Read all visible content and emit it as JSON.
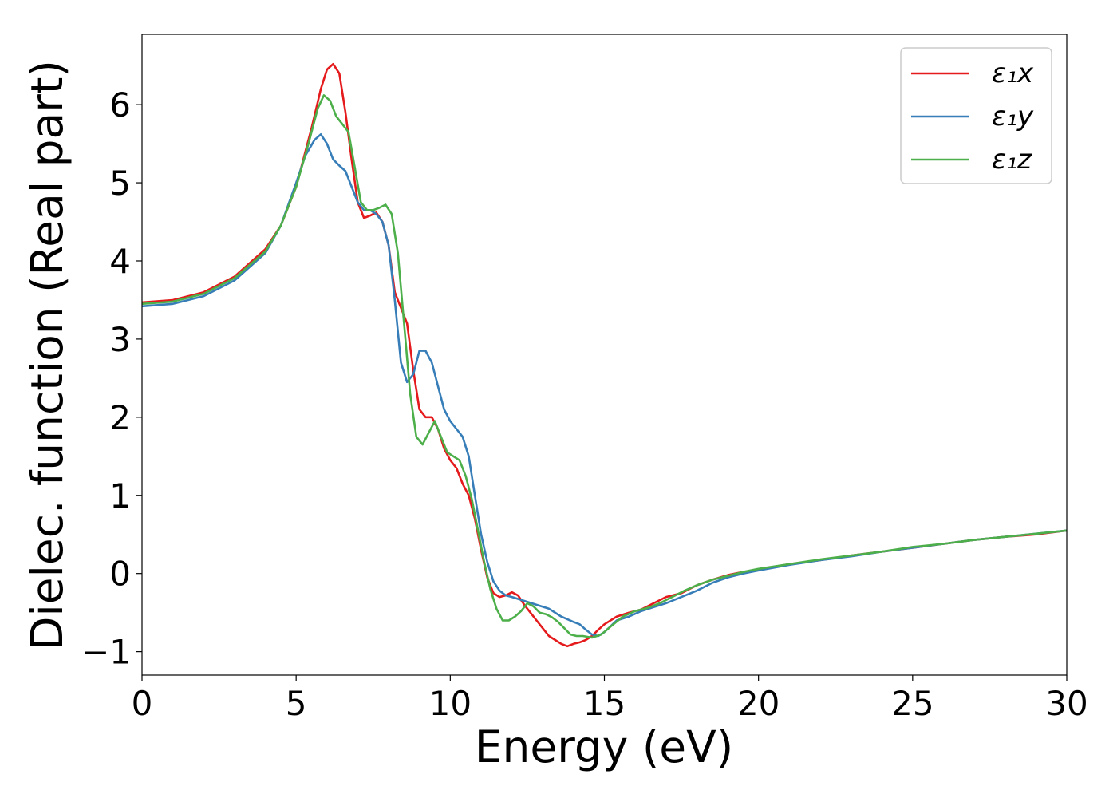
{
  "chart_data": {
    "type": "line",
    "title": "",
    "xlabel": "Energy (eV)",
    "ylabel": "Dielec. function (Real part)",
    "xlim": [
      0,
      30
    ],
    "ylim": [
      -1.3,
      6.9
    ],
    "grid": false,
    "legend_position": "top-right",
    "xticks": [
      0,
      5,
      10,
      15,
      20,
      25,
      30
    ],
    "xtick_labels": [
      "0",
      "5",
      "10",
      "15",
      "20",
      "25",
      "30"
    ],
    "yticks": [
      -1,
      0,
      1,
      2,
      3,
      4,
      5,
      6
    ],
    "ytick_labels": [
      "−1",
      "0",
      "1",
      "2",
      "3",
      "4",
      "5",
      "6"
    ],
    "series": [
      {
        "name": "ε₁x",
        "color": "#e41a1c",
        "points": [
          [
            0,
            3.47
          ],
          [
            1,
            3.5
          ],
          [
            2,
            3.6
          ],
          [
            3,
            3.8
          ],
          [
            4,
            4.15
          ],
          [
            4.5,
            4.45
          ],
          [
            5,
            4.95
          ],
          [
            5.5,
            5.7
          ],
          [
            5.8,
            6.2
          ],
          [
            6,
            6.45
          ],
          [
            6.2,
            6.52
          ],
          [
            6.4,
            6.4
          ],
          [
            6.6,
            5.9
          ],
          [
            6.8,
            5.3
          ],
          [
            7,
            4.75
          ],
          [
            7.2,
            4.55
          ],
          [
            7.4,
            4.58
          ],
          [
            7.6,
            4.62
          ],
          [
            7.8,
            4.5
          ],
          [
            8,
            4.2
          ],
          [
            8.2,
            3.6
          ],
          [
            8.4,
            3.4
          ],
          [
            8.6,
            3.2
          ],
          [
            8.8,
            2.6
          ],
          [
            9,
            2.1
          ],
          [
            9.2,
            2.0
          ],
          [
            9.4,
            2.0
          ],
          [
            9.6,
            1.85
          ],
          [
            9.8,
            1.6
          ],
          [
            10,
            1.45
          ],
          [
            10.2,
            1.35
          ],
          [
            10.4,
            1.15
          ],
          [
            10.6,
            1.0
          ],
          [
            10.8,
            0.7
          ],
          [
            11,
            0.3
          ],
          [
            11.2,
            -0.05
          ],
          [
            11.4,
            -0.25
          ],
          [
            11.6,
            -0.3
          ],
          [
            11.8,
            -0.28
          ],
          [
            12,
            -0.24
          ],
          [
            12.2,
            -0.28
          ],
          [
            12.4,
            -0.4
          ],
          [
            12.6,
            -0.5
          ],
          [
            12.8,
            -0.6
          ],
          [
            13,
            -0.7
          ],
          [
            13.2,
            -0.8
          ],
          [
            13.4,
            -0.85
          ],
          [
            13.6,
            -0.9
          ],
          [
            13.8,
            -0.93
          ],
          [
            14,
            -0.9
          ],
          [
            14.2,
            -0.88
          ],
          [
            14.4,
            -0.85
          ],
          [
            14.6,
            -0.8
          ],
          [
            14.8,
            -0.72
          ],
          [
            15,
            -0.65
          ],
          [
            15.4,
            -0.55
          ],
          [
            15.8,
            -0.5
          ],
          [
            16.2,
            -0.46
          ],
          [
            16.6,
            -0.38
          ],
          [
            17,
            -0.3
          ],
          [
            17.5,
            -0.25
          ],
          [
            18,
            -0.15
          ],
          [
            18.5,
            -0.08
          ],
          [
            19,
            -0.02
          ],
          [
            19.5,
            0.02
          ],
          [
            20,
            0.05
          ],
          [
            21,
            0.12
          ],
          [
            22,
            0.17
          ],
          [
            23,
            0.23
          ],
          [
            24,
            0.28
          ],
          [
            25,
            0.33
          ],
          [
            26,
            0.38
          ],
          [
            27,
            0.43
          ],
          [
            28,
            0.47
          ],
          [
            29,
            0.5
          ],
          [
            30,
            0.55
          ]
        ]
      },
      {
        "name": "ε₁y",
        "color": "#377eb8",
        "points": [
          [
            0,
            3.42
          ],
          [
            1,
            3.45
          ],
          [
            2,
            3.55
          ],
          [
            3,
            3.75
          ],
          [
            4,
            4.1
          ],
          [
            4.5,
            4.45
          ],
          [
            5,
            5.0
          ],
          [
            5.3,
            5.35
          ],
          [
            5.6,
            5.55
          ],
          [
            5.8,
            5.62
          ],
          [
            6,
            5.5
          ],
          [
            6.2,
            5.3
          ],
          [
            6.4,
            5.22
          ],
          [
            6.6,
            5.15
          ],
          [
            6.8,
            4.95
          ],
          [
            7,
            4.75
          ],
          [
            7.2,
            4.65
          ],
          [
            7.4,
            4.65
          ],
          [
            7.6,
            4.6
          ],
          [
            7.8,
            4.5
          ],
          [
            8,
            4.2
          ],
          [
            8.2,
            3.5
          ],
          [
            8.4,
            2.7
          ],
          [
            8.6,
            2.45
          ],
          [
            8.8,
            2.55
          ],
          [
            9,
            2.85
          ],
          [
            9.2,
            2.85
          ],
          [
            9.4,
            2.7
          ],
          [
            9.6,
            2.4
          ],
          [
            9.8,
            2.1
          ],
          [
            10,
            1.95
          ],
          [
            10.2,
            1.85
          ],
          [
            10.4,
            1.75
          ],
          [
            10.6,
            1.5
          ],
          [
            10.8,
            1.0
          ],
          [
            11,
            0.5
          ],
          [
            11.2,
            0.15
          ],
          [
            11.4,
            -0.1
          ],
          [
            11.6,
            -0.22
          ],
          [
            11.8,
            -0.28
          ],
          [
            12,
            -0.3
          ],
          [
            12.4,
            -0.35
          ],
          [
            12.8,
            -0.4
          ],
          [
            13.2,
            -0.45
          ],
          [
            13.6,
            -0.55
          ],
          [
            14,
            -0.62
          ],
          [
            14.2,
            -0.65
          ],
          [
            14.4,
            -0.72
          ],
          [
            14.6,
            -0.78
          ],
          [
            14.8,
            -0.8
          ],
          [
            15,
            -0.75
          ],
          [
            15.4,
            -0.6
          ],
          [
            15.8,
            -0.55
          ],
          [
            16.2,
            -0.48
          ],
          [
            16.6,
            -0.43
          ],
          [
            17,
            -0.38
          ],
          [
            17.5,
            -0.3
          ],
          [
            18,
            -0.22
          ],
          [
            18.5,
            -0.12
          ],
          [
            19,
            -0.05
          ],
          [
            19.5,
            0.0
          ],
          [
            20,
            0.04
          ],
          [
            21,
            0.11
          ],
          [
            22,
            0.17
          ],
          [
            23,
            0.22
          ],
          [
            24,
            0.28
          ],
          [
            25,
            0.33
          ],
          [
            26,
            0.38
          ],
          [
            27,
            0.43
          ],
          [
            28,
            0.47
          ],
          [
            29,
            0.51
          ],
          [
            30,
            0.55
          ]
        ]
      },
      {
        "name": "ε₁z",
        "color": "#4daf4a",
        "points": [
          [
            0,
            3.45
          ],
          [
            1,
            3.48
          ],
          [
            2,
            3.58
          ],
          [
            3,
            3.78
          ],
          [
            4,
            4.12
          ],
          [
            4.5,
            4.45
          ],
          [
            5,
            4.95
          ],
          [
            5.4,
            5.5
          ],
          [
            5.7,
            5.95
          ],
          [
            5.9,
            6.12
          ],
          [
            6.1,
            6.05
          ],
          [
            6.3,
            5.85
          ],
          [
            6.5,
            5.75
          ],
          [
            6.7,
            5.65
          ],
          [
            6.9,
            5.2
          ],
          [
            7.1,
            4.75
          ],
          [
            7.3,
            4.65
          ],
          [
            7.5,
            4.65
          ],
          [
            7.7,
            4.68
          ],
          [
            7.9,
            4.72
          ],
          [
            8.1,
            4.6
          ],
          [
            8.3,
            4.1
          ],
          [
            8.5,
            3.2
          ],
          [
            8.7,
            2.3
          ],
          [
            8.9,
            1.75
          ],
          [
            9.1,
            1.65
          ],
          [
            9.3,
            1.8
          ],
          [
            9.5,
            1.95
          ],
          [
            9.7,
            1.75
          ],
          [
            9.9,
            1.55
          ],
          [
            10.1,
            1.5
          ],
          [
            10.3,
            1.45
          ],
          [
            10.5,
            1.25
          ],
          [
            10.7,
            0.95
          ],
          [
            10.9,
            0.55
          ],
          [
            11.1,
            0.15
          ],
          [
            11.3,
            -0.2
          ],
          [
            11.5,
            -0.45
          ],
          [
            11.7,
            -0.6
          ],
          [
            11.9,
            -0.6
          ],
          [
            12.1,
            -0.55
          ],
          [
            12.3,
            -0.48
          ],
          [
            12.5,
            -0.38
          ],
          [
            12.7,
            -0.42
          ],
          [
            12.9,
            -0.5
          ],
          [
            13.1,
            -0.52
          ],
          [
            13.3,
            -0.56
          ],
          [
            13.5,
            -0.62
          ],
          [
            13.7,
            -0.7
          ],
          [
            13.9,
            -0.78
          ],
          [
            14.1,
            -0.8
          ],
          [
            14.3,
            -0.8
          ],
          [
            14.6,
            -0.82
          ],
          [
            14.9,
            -0.78
          ],
          [
            15.2,
            -0.68
          ],
          [
            15.6,
            -0.55
          ],
          [
            16,
            -0.48
          ],
          [
            16.4,
            -0.44
          ],
          [
            16.8,
            -0.38
          ],
          [
            17.2,
            -0.3
          ],
          [
            17.6,
            -0.22
          ],
          [
            18,
            -0.15
          ],
          [
            18.5,
            -0.08
          ],
          [
            19,
            -0.03
          ],
          [
            19.5,
            0.02
          ],
          [
            20,
            0.06
          ],
          [
            21,
            0.12
          ],
          [
            22,
            0.18
          ],
          [
            23,
            0.23
          ],
          [
            24,
            0.28
          ],
          [
            25,
            0.34
          ],
          [
            26,
            0.38
          ],
          [
            27,
            0.43
          ],
          [
            28,
            0.47
          ],
          [
            29,
            0.51
          ],
          [
            30,
            0.55
          ]
        ]
      }
    ]
  }
}
